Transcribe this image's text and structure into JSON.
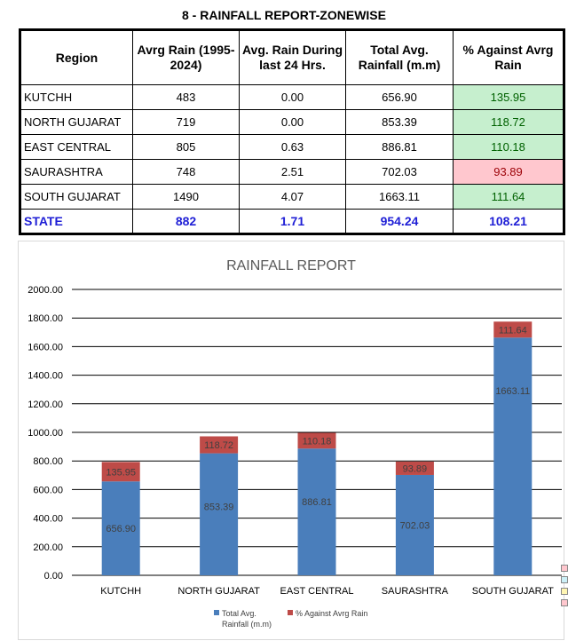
{
  "title": "8 - RAINFALL REPORT-ZONEWISE",
  "table": {
    "headers": [
      "Region",
      "Avrg Rain (1995-2024)",
      "Avg. Rain During last 24 Hrs.",
      "Total Avg. Rainfall (m.m)",
      "% Against Avrg Rain"
    ],
    "rows": [
      {
        "region": "KUTCHH",
        "avg": "483",
        "last24": "0.00",
        "total": "656.90",
        "pct": "135.95",
        "status": "above"
      },
      {
        "region": "NORTH GUJARAT",
        "avg": "719",
        "last24": "0.00",
        "total": "853.39",
        "pct": "118.72",
        "status": "above"
      },
      {
        "region": "EAST CENTRAL",
        "avg": "805",
        "last24": "0.63",
        "total": "886.81",
        "pct": "110.18",
        "status": "above"
      },
      {
        "region": "SAURASHTRA",
        "avg": "748",
        "last24": "2.51",
        "total": "702.03",
        "pct": "93.89",
        "status": "below"
      },
      {
        "region": "SOUTH GUJARAT",
        "avg": "1490",
        "last24": "4.07",
        "total": "1663.11",
        "pct": "111.64",
        "status": "above"
      }
    ],
    "state": {
      "region": "STATE",
      "avg": "882",
      "last24": "1.71",
      "total": "954.24",
      "pct": "108.21"
    }
  },
  "colors": {
    "total": "#4a7ebb",
    "pct": "#be4b48",
    "good_bg": "#c6efce",
    "bad_bg": "#ffc7ce",
    "state_text": "#1f1fd6"
  },
  "chart_data": {
    "type": "bar",
    "stacked": true,
    "title": "RAINFALL REPORT",
    "categories": [
      "KUTCHH",
      "NORTH GUJARAT",
      "EAST CENTRAL",
      "SAURASHTRA",
      "SOUTH GUJARAT"
    ],
    "series": [
      {
        "name": "Total Avg. Rainfall (m.m)",
        "values": [
          656.9,
          853.39,
          886.81,
          702.03,
          1663.11
        ]
      },
      {
        "name": "% Against Avrg Rain",
        "values": [
          135.95,
          118.72,
          110.18,
          93.89,
          111.64
        ]
      }
    ],
    "ylim": [
      0,
      2000
    ],
    "yticks": [
      "0.00",
      "200.00",
      "400.00",
      "600.00",
      "800.00",
      "1000.00",
      "1200.00",
      "1400.00",
      "1600.00",
      "1800.00",
      "2000.00"
    ],
    "grid": true,
    "legend": "bottom"
  }
}
